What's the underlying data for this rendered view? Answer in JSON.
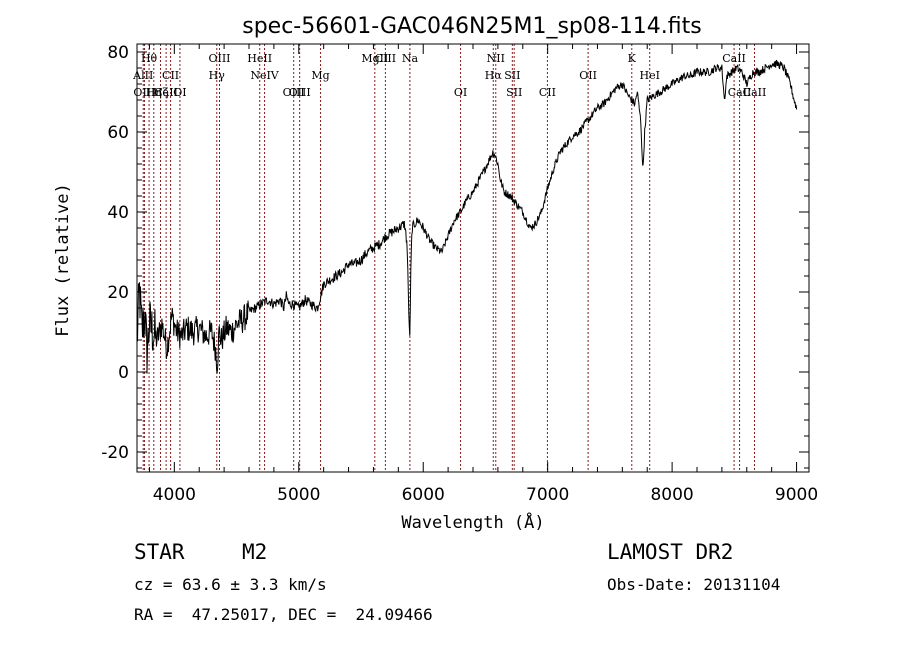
{
  "chart_data": {
    "type": "line",
    "title": "spec-56601-GAC046N25M1_sp08-114.fits",
    "xlabel": "Wavelength (Å)",
    "ylabel": "Flux (relative)",
    "xlim": [
      3700,
      9100
    ],
    "ylim": [
      -25,
      82
    ],
    "xticks": [
      4000,
      5000,
      6000,
      7000,
      8000,
      9000
    ],
    "yticks": [
      -20,
      0,
      20,
      40,
      60,
      80
    ],
    "line_color": "#000000",
    "marker_color": "#8b1a1a",
    "spectrum_anchors": {
      "x": [
        3700,
        3720,
        3740,
        3760,
        3780,
        3800,
        3830,
        3860,
        3900,
        3940,
        3980,
        4020,
        4060,
        4100,
        4150,
        4200,
        4250,
        4300,
        4330,
        4345,
        4360,
        4380,
        4420,
        4460,
        4500,
        4550,
        4600,
        4650,
        4700,
        4750,
        4800,
        4850,
        4880,
        4900,
        4920,
        4950,
        5000,
        5050,
        5100,
        5150,
        5200,
        5250,
        5300,
        5350,
        5400,
        5450,
        5500,
        5550,
        5600,
        5650,
        5700,
        5750,
        5800,
        5850,
        5870,
        5880,
        5890,
        5895,
        5900,
        5910,
        5930,
        5960,
        6000,
        6050,
        6100,
        6150,
        6200,
        6250,
        6300,
        6350,
        6400,
        6450,
        6500,
        6530,
        6560,
        6580,
        6600,
        6620,
        6650,
        6700,
        6750,
        6800,
        6830,
        6860,
        6900,
        6950,
        7000,
        7050,
        7100,
        7150,
        7200,
        7250,
        7300,
        7350,
        7400,
        7450,
        7500,
        7550,
        7600,
        7650,
        7700,
        7720,
        7750,
        7765,
        7780,
        7800,
        7850,
        7900,
        7950,
        8000,
        8050,
        8100,
        8150,
        8200,
        8250,
        8300,
        8350,
        8400,
        8420,
        8440,
        8480,
        8520,
        8560,
        8600,
        8650,
        8700,
        8750,
        8800,
        8850,
        8900,
        8950,
        8980,
        9000
      ],
      "y": [
        8,
        20,
        10,
        15,
        5,
        12,
        10,
        8,
        12,
        6,
        14,
        10,
        9,
        11,
        10,
        11,
        9,
        10,
        6,
        2,
        10,
        8,
        11,
        10,
        12,
        13,
        15,
        16,
        17,
        18,
        17,
        18,
        16,
        19,
        17,
        17,
        16,
        18,
        17,
        16,
        22,
        23,
        24,
        25,
        27,
        27,
        28,
        30,
        31,
        32,
        34,
        35,
        36,
        37,
        32,
        20,
        8,
        12,
        25,
        36,
        37,
        38,
        36,
        33,
        31,
        30,
        34,
        38,
        40,
        43,
        45,
        48,
        51,
        53,
        55,
        54,
        52,
        48,
        45,
        44,
        42,
        40,
        38,
        36,
        37,
        40,
        46,
        51,
        55,
        57,
        59,
        60,
        62,
        64,
        66,
        67,
        69,
        71,
        72,
        69,
        67,
        70,
        62,
        50,
        60,
        68,
        69,
        70,
        71,
        72,
        73,
        74,
        74,
        75,
        75,
        75,
        76,
        76,
        68,
        74,
        75,
        76,
        75,
        72,
        75,
        75,
        76,
        77,
        77,
        76,
        72,
        68,
        66
      ]
    },
    "spectral_lines": [
      {
        "label": "Hθ",
        "x": 3797,
        "row": 1
      },
      {
        "label": "AlII",
        "x": 3750,
        "row": 2
      },
      {
        "label": "OIII",
        "x": 3760,
        "row": 3
      },
      {
        "label": "Hη",
        "x": 3835,
        "row": 3
      },
      {
        "label": "Hζ",
        "x": 3889,
        "row": 3
      },
      {
        "label": "CaII",
        "x": 3934,
        "row": 3
      },
      {
        "label": "CII",
        "x": 3970,
        "row": 2
      },
      {
        "label": "OI",
        "x": 4045,
        "row": 3
      },
      {
        "label": "OIII",
        "x": 4363,
        "row": 1
      },
      {
        "label": "Hγ",
        "x": 4341,
        "row": 2
      },
      {
        "label": "HeII",
        "x": 4686,
        "row": 1
      },
      {
        "label": "NeIV",
        "x": 4725,
        "row": 2
      },
      {
        "label": "OIII",
        "x": 4959,
        "row": 3
      },
      {
        "label": "OIII",
        "x": 5007,
        "row": 3
      },
      {
        "label": "Mg",
        "x": 5175,
        "row": 2
      },
      {
        "label": "MgII",
        "x": 5611,
        "row": 1
      },
      {
        "label": "CIII",
        "x": 5696,
        "row": 1
      },
      {
        "label": "Na",
        "x": 5893,
        "row": 1
      },
      {
        "label": "OI",
        "x": 6300,
        "row": 3
      },
      {
        "label": "NII",
        "x": 6583,
        "row": 1
      },
      {
        "label": "Hα",
        "x": 6563,
        "row": 2
      },
      {
        "label": "SII",
        "x": 6716,
        "row": 2
      },
      {
        "label": "SII",
        "x": 6731,
        "row": 3
      },
      {
        "label": "CII",
        "x": 6998,
        "row": 3
      },
      {
        "label": "OII",
        "x": 7325,
        "row": 2
      },
      {
        "label": "K",
        "x": 7676,
        "row": 1
      },
      {
        "label": "HeI",
        "x": 7820,
        "row": 2
      },
      {
        "label": "CaII",
        "x": 8498,
        "row": 1
      },
      {
        "label": "CaII",
        "x": 8542,
        "row": 3
      },
      {
        "label": "CaII",
        "x": 8662,
        "row": 3
      }
    ]
  },
  "info": {
    "object_type": "STAR",
    "subclass": "M2",
    "survey": "LAMOST DR2",
    "cz": "cz = 63.6 ± 3.3 km/s",
    "obs_date": "Obs-Date: 20131104",
    "coords": "RA =  47.25017, DEC =  24.09466"
  }
}
